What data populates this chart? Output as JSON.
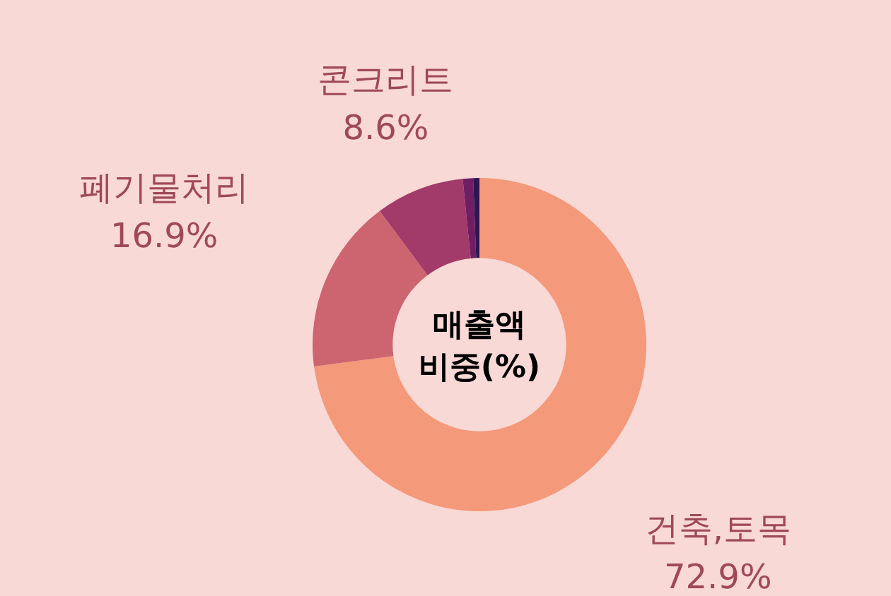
{
  "chart_data": {
    "type": "donut",
    "title": "매출액 비중(%)",
    "categories": [
      "건축,토목",
      "폐기물처리",
      "콘크리트",
      null,
      null
    ],
    "values": [
      72.9,
      16.9,
      8.6,
      1.0,
      0.6
    ],
    "value_labels": [
      "72.9%",
      "16.9%",
      "8.6%",
      null,
      null
    ],
    "colors": [
      "#f4997a",
      "#cd6570",
      "#a23b69",
      "#6f1e63",
      "#2e1554"
    ]
  }
}
